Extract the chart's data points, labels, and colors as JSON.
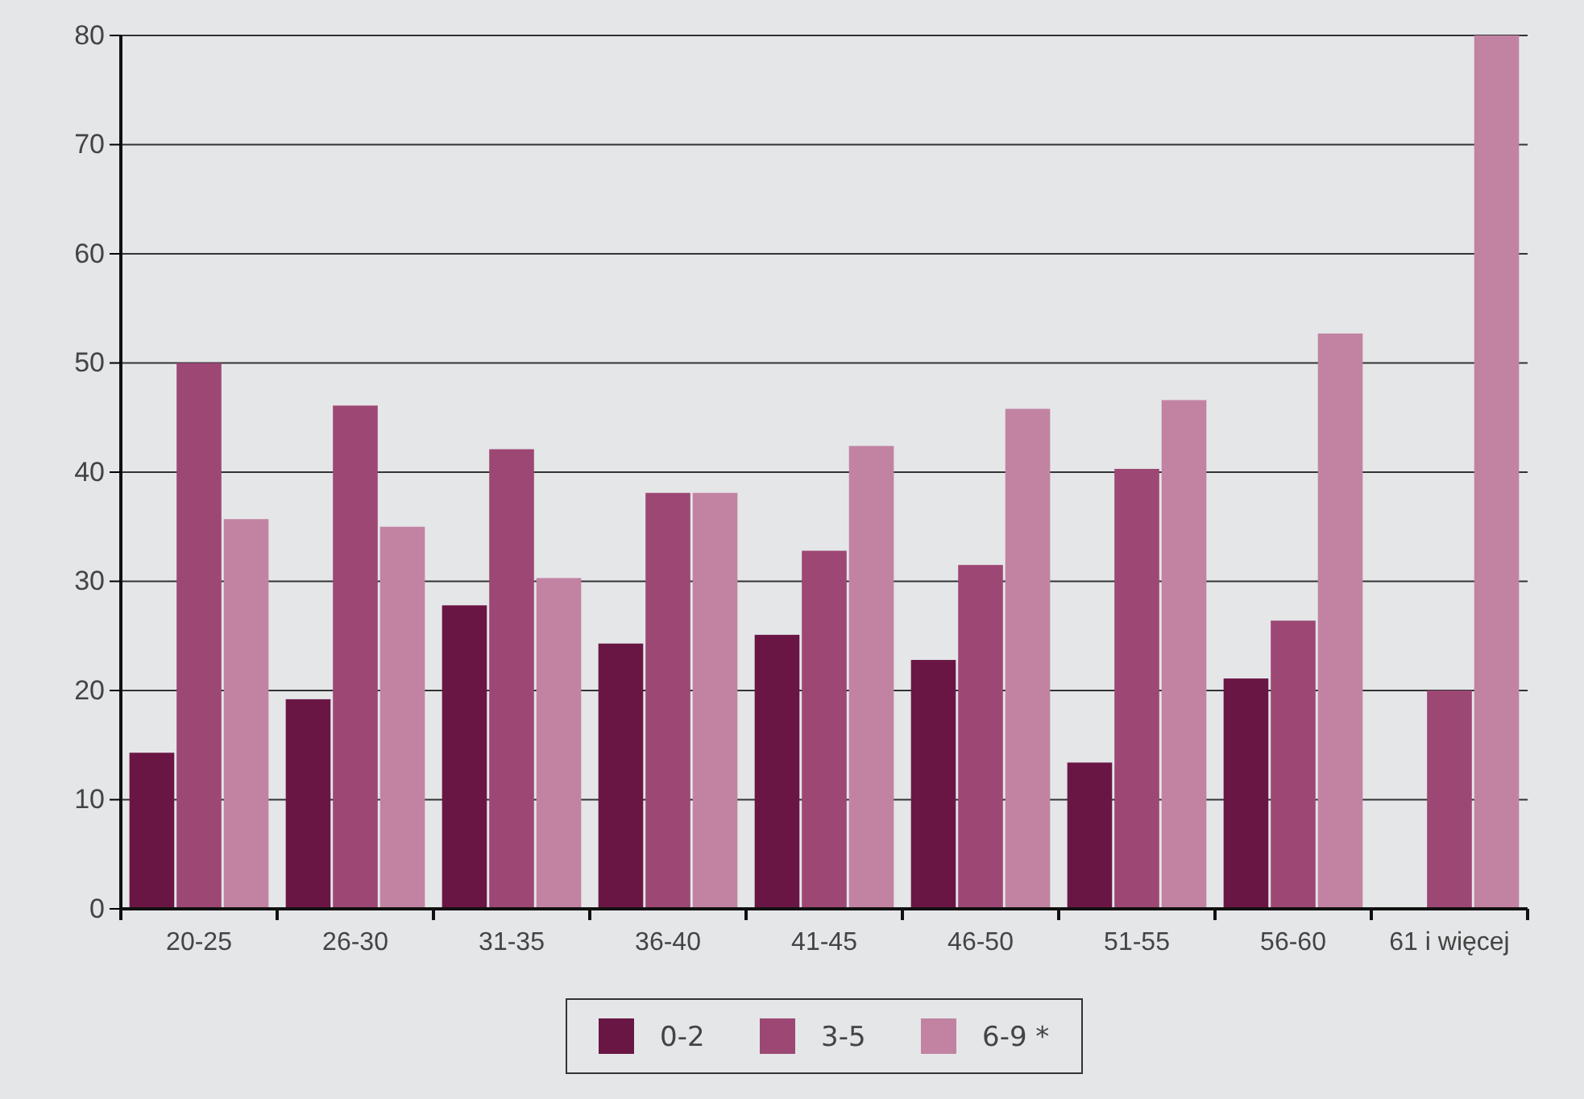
{
  "chart_data": {
    "type": "bar",
    "categories": [
      "20-25",
      "26-30",
      "31-35",
      "36-40",
      "41-45",
      "46-50",
      "51-55",
      "56-60",
      "61 i więcej"
    ],
    "series": [
      {
        "name": "0-2",
        "color": "#6a1645",
        "values": [
          14.3,
          19.2,
          27.8,
          24.3,
          25.1,
          22.8,
          13.4,
          21.1,
          null
        ]
      },
      {
        "name": "3-5",
        "color": "#9d4874",
        "values": [
          50,
          46.1,
          42.1,
          38.1,
          32.8,
          31.5,
          40.3,
          26.4,
          20
        ]
      },
      {
        "name": "6-9 *",
        "color": "#c283a3",
        "values": [
          35.7,
          35,
          30.3,
          38.1,
          42.4,
          45.8,
          46.6,
          52.7,
          80
        ]
      }
    ],
    "ylim": [
      0,
      80
    ],
    "yticks": [
      0,
      10,
      20,
      30,
      40,
      50,
      60,
      70,
      80
    ],
    "grid": "y",
    "legend": "bottom"
  }
}
